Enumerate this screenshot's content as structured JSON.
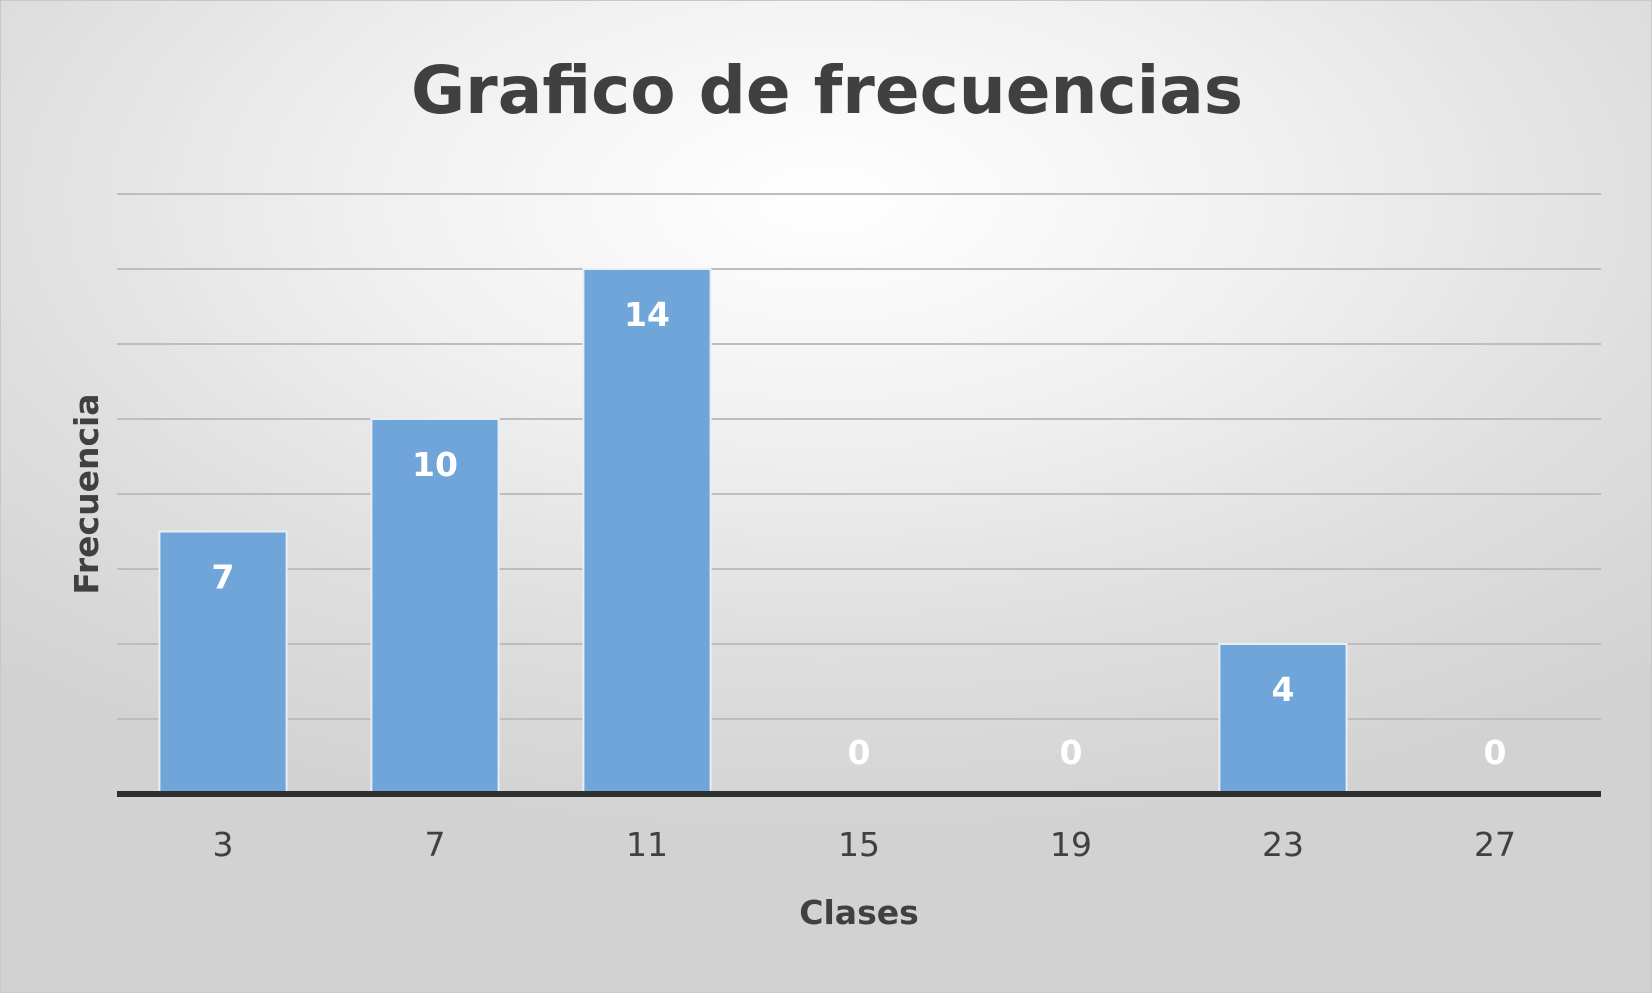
{
  "chart_data": {
    "type": "bar",
    "title": "Grafico de frecuencias",
    "xlabel": "Clases",
    "ylabel": "Frecuencia",
    "categories": [
      "3",
      "7",
      "11",
      "15",
      "19",
      "23",
      "27"
    ],
    "values": [
      7,
      10,
      14,
      0,
      0,
      4,
      0
    ],
    "ylim": [
      0,
      16
    ],
    "y_gridline_step": 2,
    "y_tick_labels_shown": false,
    "grid": true,
    "legend": "none",
    "data_labels": true,
    "colors": {
      "bar": "#6fa5d8",
      "bar_outline": "#e8eef5",
      "gridline": "#bdbdbd",
      "axis": "#2f2f2f",
      "text": "#404040",
      "data_label": "#ffffff"
    }
  }
}
